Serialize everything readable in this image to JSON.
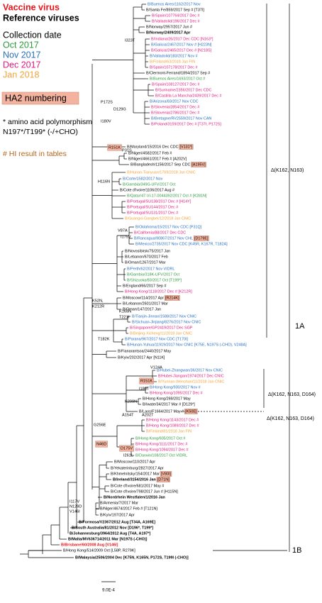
{
  "legend": {
    "vaccine": {
      "text": "Vaccine virus",
      "color": "#e8141c"
    },
    "reference": {
      "text": "Reference viruses"
    },
    "collection_title": "Collection date",
    "dates": [
      {
        "text": "Oct 2017",
        "color": "#2e9a3e"
      },
      {
        "text": "Nov 2017",
        "color": "#2a6fc0"
      },
      {
        "text": "Dec 2017",
        "color": "#e2197e"
      },
      {
        "text": "Jan 2018",
        "color": "#f2a33a"
      }
    ],
    "ha2": "HA2 numbering",
    "polymorphism": [
      "* amino acid polymorphism",
      "N197*/T199* (-/+CHO)"
    ],
    "hi": "# HI result in tables"
  },
  "leaves": [
    {
      "label": "B/Buenos Aires/1162/2017 Nov",
      "color": "#2a6fc0"
    },
    {
      "label": "B/Santa Fe/859/2017 Sep # [T37I]"
    },
    {
      "label": "B/Spain/107764/2017 Dec #",
      "color": "#e2197e"
    },
    {
      "label": "B/Valladolid/196/2017 Dec #",
      "color": "#e2197e"
    },
    {
      "label": "B/Norway/2957/2017 Jun #"
    },
    {
      "label": "B/Norway/2409/2017 Apr",
      "bold": true
    },
    {
      "label": "B/Indiana/26/2017 Dec CDC [N163*]",
      "color": "#e2197e"
    },
    {
      "label": "B/Galicia/2467/2017 Nov # [H223N]",
      "color": "#2a6fc0"
    },
    {
      "label": "B/Galicia/2465/2017 Dec # [N218S]",
      "color": "#e2197e"
    },
    {
      "label": "B/Valladolid/183/2017 Nov #",
      "color": "#2a6fc0"
    },
    {
      "label": "B/Finland/63/2018 Jan FIN",
      "color": "#f2a33a"
    },
    {
      "label": "B/Spain/107178/2017 Dec #",
      "color": "#e2197e"
    },
    {
      "label": "B/Clermont-Ferrand/1894/2017 Sep #"
    },
    {
      "label": "B/Buenos Aires/1693/2017 Oct #",
      "color": "#2e9a3e"
    },
    {
      "label": "B/Spain/108127/2017 Dec #",
      "color": "#e2197e"
    },
    {
      "label": "B/Suriname/2356/2017 Dec CDC",
      "color": "#e2197e"
    },
    {
      "label": "B/Castilla La Mancha/2439/2017 Dec #",
      "color": "#e2197e"
    },
    {
      "label": "B/Arizona/83/2017 Nov CDC",
      "color": "#2a6fc0"
    },
    {
      "label": "B/Slovenia/2854/2017 Dec #",
      "color": "#e2197e"
    },
    {
      "label": "B/Slovenia/2786/2017 Dec #",
      "color": "#e2197e"
    },
    {
      "label": "B/Bretagne/RV2559/2017 Nov CAN",
      "color": "#2a6fc0"
    },
    {
      "label": "B/Poland/3159/2017 Dec # [T37I, P172S]",
      "color": "#e2197e"
    },
    {
      "label": "B/Maryland/15/2016 Dec CDC",
      "box": "[V131*]"
    },
    {
      "label": "B/Nigeri/4582/2017 Feb #"
    },
    {
      "label": "B/Nigeri/4661/2017 Feb # [A202V]"
    },
    {
      "label": "B/Bangladesh/1156/2017 Sep CDC",
      "box": "[A195V]"
    },
    {
      "label": "B/Hunan-Tianyuan/1769/2018 Jan CNIC",
      "color": "#f2a33a"
    },
    {
      "label": "B/Corte/1582/2017 Nov",
      "color": "#2a6fc0"
    },
    {
      "label": "B/Gambia/349G-UFV/2017 Oct",
      "color": "#2e9a3e"
    },
    {
      "label": "B/Cote d'Ivoire/1106/2017 Aug #"
    },
    {
      "label": "B/Qatar/47-VI-17-0044392/2017 Oct # [K281N]",
      "color": "#2e9a3e"
    },
    {
      "label": "B/Portugal/SU138/2017 Dec # [H14Y]",
      "color": "#e2197e"
    },
    {
      "label": "B/Portugal/SU144/2017 Dec #",
      "color": "#e2197e"
    },
    {
      "label": "B/Portugal/SU131/2017 Dec #",
      "color": "#e2197e"
    },
    {
      "label": "B/Guangxi-Gangbei/12/2018 Jan CNIC",
      "color": "#f2a33a"
    },
    {
      "label": "B/Oklahoma/15/2017 Nov CDC [P31Q]",
      "color": "#2a6fc0"
    },
    {
      "label": "B/California/88/2017 Dec CDC",
      "color": "#e2197e"
    },
    {
      "label": "B/Rancagua/90867/2017 Nov CHL",
      "color": "#2a6fc0",
      "box": "[D179E]"
    },
    {
      "label": "B/Mexico/2735/2017 Nov CDC [K45R, K167R, T182A]",
      "color": "#2a6fc0"
    },
    {
      "label": "B/Novosibirsk/75/2017 Jan"
    },
    {
      "label": "B/Lebanon/670/2017 Feb"
    },
    {
      "label": "B/Oman/1267/2017 Mar"
    },
    {
      "label": "B/Perth/62/2017 Nov VIDRL",
      "color": "#2a6fc0"
    },
    {
      "label": "B/Gambia/318K-UFV/2017 Oct",
      "color": "#2e9a3e"
    },
    {
      "label": "B/Shizuoka/83/2017 Oct [T199*]",
      "color": "#2e9a3e"
    },
    {
      "label": "B/England/66/2017 Sep #"
    },
    {
      "label": "B/Hong Kong/1118/2017 Dec # [K212R]",
      "color": "#e2197e"
    },
    {
      "label": "B/Moscow/114/2017 Apr",
      "box": "[R214K]"
    },
    {
      "label": "B/Lebanon/2601/2017 Mar"
    },
    {
      "label": "B/Oman/147/2017 Jan"
    },
    {
      "label": "B/Tianjin-Jinnan/1588/2017 Nov CNIC",
      "color": "#2a6fc0"
    },
    {
      "label": "B/Sichuan-Jinjiang/8276/2017 Nov CNIC",
      "color": "#2a6fc0"
    },
    {
      "label": "B/Singapore/GP2419/2017 Dec SGP",
      "color": "#e2197e"
    },
    {
      "label": "B/Beijing-Xicheng/11/2018 Jan CNIC",
      "color": "#f2a33a"
    },
    {
      "label": "B/Parana/967/2017 Nov CDC [T170I]",
      "color": "#2a6fc0"
    },
    {
      "label": "B/Hunan-Yuhua/11919/2017 Nov CNIC [K75E, N197S (-CHO), V248A]",
      "color": "#2a6fc0"
    },
    {
      "label": "B/Fianarantsoa/2440/2017 May"
    },
    {
      "label": "B/Kyiv/202/2017 Apr [N11K]"
    },
    {
      "label": "B/Hubei-Zhangwan/36/2017 Nov CNIC",
      "color": "#2a6fc0"
    },
    {
      "label": "B/Hubei-Jiangan/1974/2017 Dec CNIC",
      "color": "#e2197e"
    },
    {
      "label": "B/Yunnan-Wenshan/11/2018 Jan CNIC",
      "color": "#f2a33a"
    },
    {
      "label": "B/Hong Kong/930/2017 Nov #",
      "color": "#2a6fc0"
    },
    {
      "label": "B/Hong Kong/1095/2017 Dec #",
      "color": "#e2197e"
    },
    {
      "label": "B/Hong Kong/269/2017 May"
    },
    {
      "label": "B/Iwate/34/2017 Mar # [D129*]"
    },
    {
      "label": "B/Laos/F1664/2017 May #",
      "box": "[K50E]"
    },
    {
      "label": "B/Hong Kong/1143/2017 Dec #",
      "color": "#e2197e"
    },
    {
      "label": "B/Hong Kong/1089/2017 Dec #",
      "color": "#e2197e"
    },
    {
      "label": "B/Finland/81/2018 Jan FIN",
      "color": "#f2a33a"
    },
    {
      "label": "B/Hong Kong/605/2017 Oct #",
      "color": "#2e9a3e"
    },
    {
      "label": "B/Hong Kong/1111/2017 Dec #",
      "color": "#e2197e"
    },
    {
      "label": "B/Hong Kong/1094/2017 Dec #",
      "color": "#e2197e"
    },
    {
      "label": "B/Darwin/108/2017 Oct VIDRL",
      "color": "#2e9a3e"
    },
    {
      "label": "B/Moscow/110/2017 Apr"
    },
    {
      "label": "B/Yekaterinburg/2827/2017 Apr"
    },
    {
      "label": "B/Khmelnitsky/154/2017 Mar",
      "box": "[V80I]"
    },
    {
      "label": "B/Ireland/3154/2016 Jan",
      "bold": true,
      "box": "[D71N]"
    },
    {
      "label": "B/Cote d'Ivoire/681/2017 May #"
    },
    {
      "label": "B/Cote d'Ivoire/798/2017 Jun # [H115N]"
    },
    {
      "label": "B/Nordrhein Westfalen/1/2016 Jan",
      "bold": true
    },
    {
      "label": "B/Armenia/7/2017 Mar"
    },
    {
      "label": "B/Niger/4674/2017 Feb # [T121N]"
    },
    {
      "label": "B/Kyiv/197/2017 Apr"
    },
    {
      "label": "B/Formosa/V2367/2012 Aug [T34A, A169E]",
      "bold": true
    },
    {
      "label": "B/South Australia/81/2012 Nov [D196*, T199*]",
      "bold": true
    },
    {
      "label": "B/Johannesburg/3964/2012 Aug [T4A, A197*]",
      "bold": true
    },
    {
      "label": "B/Malta/MV636714/2011 Mar [N197S (-CHO)]",
      "bold": true
    },
    {
      "label": "B/Brisbane/60/2008 Aug [V146I]",
      "bold": true,
      "color": "#e8141c"
    },
    {
      "label": "B/Hong Kong/514/2009 Oct [L58P, R279K]"
    },
    {
      "label": "B/Malaysia/2506/2004 Dec [K75N, K165N, P172S, T199I (-CHO)]",
      "bold": true
    }
  ],
  "branch_labels": [
    {
      "text": "I323T"
    },
    {
      "text": "D129G"
    },
    {
      "text": "P172S"
    },
    {
      "text": "I180V"
    },
    {
      "text": "R151K",
      "boxed": true
    },
    {
      "text": "P31S"
    },
    {
      "text": "H116N"
    },
    {
      "text": "V87A"
    },
    {
      "text": "I175V"
    },
    {
      "text": "K52N,"
    },
    {
      "text": "K212R"
    },
    {
      "text": "K165N"
    },
    {
      "text": "T221I"
    },
    {
      "text": "T182K"
    },
    {
      "text": "V124A"
    },
    {
      "text": "R151K",
      "boxed": true
    },
    {
      "text": "I180T"
    },
    {
      "text": "K209N"
    },
    {
      "text": "A154T"
    },
    {
      "text": "A202T"
    },
    {
      "text": "G256E"
    },
    {
      "text": "N46D",
      "boxed": true
    },
    {
      "text": "D175V",
      "boxed": true
    },
    {
      "text": "I261L"
    },
    {
      "text": "I117V"
    },
    {
      "text": "N129D"
    },
    {
      "text": "V146I"
    }
  ],
  "clade_labels": [
    {
      "text": "Δ(K162, N163)"
    },
    {
      "text": "1A"
    },
    {
      "text": "Δ(K162, N163, D164)"
    },
    {
      "text": "Δ(K162, N163, D164)"
    },
    {
      "text": "1B"
    }
  ],
  "scale": "9.0E-4"
}
